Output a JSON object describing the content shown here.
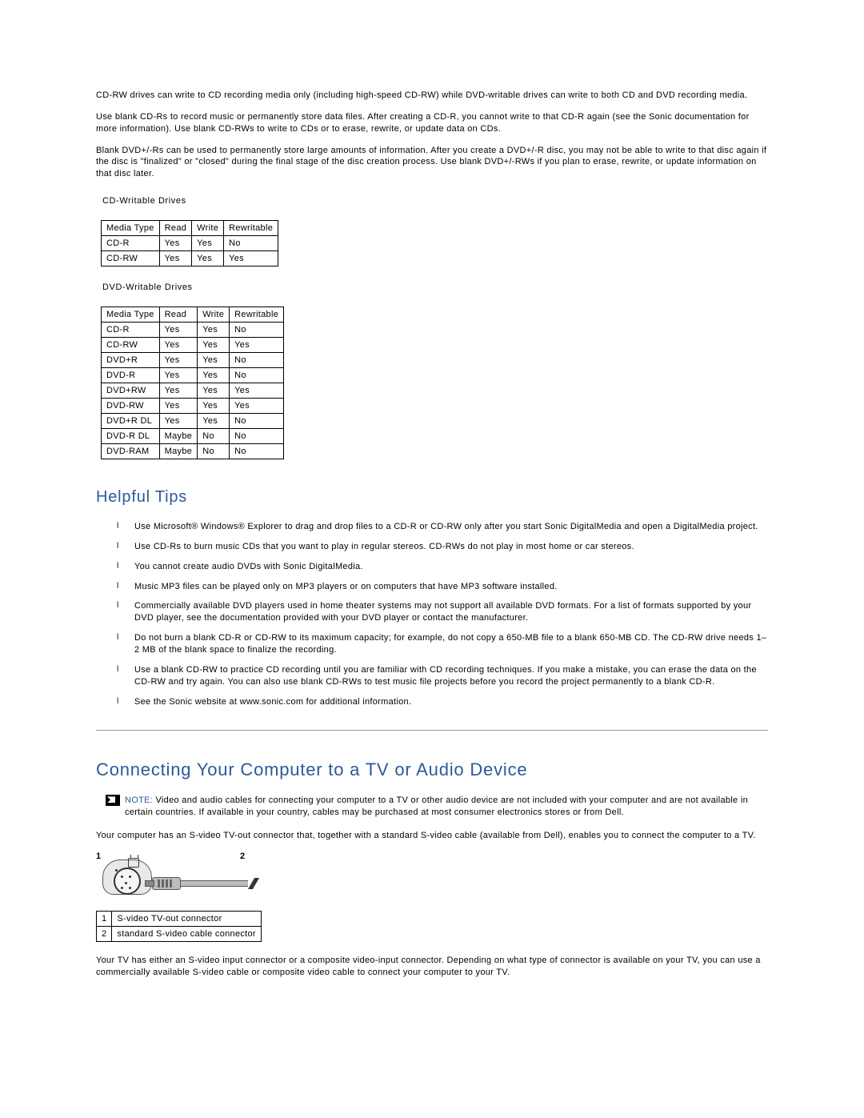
{
  "intro": {
    "p1": "CD-RW drives can write to CD recording media only (including high-speed CD-RW) while DVD-writable drives can write to both CD and DVD recording media.",
    "p2": "Use blank CD-Rs to record music or permanently store data files. After creating a CD-R, you cannot write to that CD-R again (see the Sonic documentation for more information). Use blank CD-RWs to write to CDs or to erase, rewrite, or update data on CDs.",
    "p3": "Blank DVD+/-Rs can be used to permanently store large amounts of information. After you create a DVD+/-R disc, you may not be able to write to that disc again if the disc is \"finalized\" or \"closed\" during the final stage of the disc creation process. Use blank DVD+/-RWs if you plan to erase, rewrite, or update information on that disc later."
  },
  "tables": {
    "headers": [
      "Media Type",
      "Read",
      "Write",
      "Rewritable"
    ],
    "cd": {
      "caption": "CD-Writable Drives",
      "rows": [
        [
          "CD-R",
          "Yes",
          "Yes",
          "No"
        ],
        [
          "CD-RW",
          "Yes",
          "Yes",
          "Yes"
        ]
      ]
    },
    "dvd": {
      "caption": "DVD-Writable Drives",
      "rows": [
        [
          "CD-R",
          "Yes",
          "Yes",
          "No"
        ],
        [
          "CD-RW",
          "Yes",
          "Yes",
          "Yes"
        ],
        [
          "DVD+R",
          "Yes",
          "Yes",
          "No"
        ],
        [
          "DVD-R",
          "Yes",
          "Yes",
          "No"
        ],
        [
          "DVD+RW",
          "Yes",
          "Yes",
          "Yes"
        ],
        [
          "DVD-RW",
          "Yes",
          "Yes",
          "Yes"
        ],
        [
          "DVD+R DL",
          "Yes",
          "Yes",
          "No"
        ],
        [
          "DVD-R DL",
          "Maybe",
          "No",
          "No"
        ],
        [
          "DVD-RAM",
          "Maybe",
          "No",
          "No"
        ]
      ]
    }
  },
  "tips": {
    "heading": "Helpful Tips",
    "items": [
      "Use Microsoft® Windows® Explorer to drag and drop files to a CD-R or CD-RW only after you start Sonic DigitalMedia and open a DigitalMedia project.",
      "Use CD-Rs to burn music CDs that you want to play in regular stereos. CD-RWs do not play in most home or car stereos.",
      "You cannot create audio DVDs with Sonic DigitalMedia.",
      "Music MP3 files can be played only on MP3 players or on computers that have MP3 software installed.",
      "Commercially available DVD players used in home theater systems may not support all available DVD formats. For a list of formats supported by your DVD player, see the documentation provided with your DVD player or contact the manufacturer.",
      " Do not burn a blank CD-R or CD-RW to its maximum capacity; for example, do not copy a 650-MB file to a blank 650-MB CD. The CD-RW drive needs 1–2 MB of the blank space to finalize the recording.",
      " Use a blank CD-RW to practice CD recording until you are familiar with CD recording techniques. If you make a mistake, you can erase the data on the CD-RW and try again. You can also use blank CD-RWs to test music file projects before you record the project permanently to a blank CD-R.",
      "See the Sonic website at www.sonic.com for additional information."
    ]
  },
  "connect": {
    "heading": "Connecting Your Computer to a TV or Audio Device",
    "note_label": "NOTE:",
    "note_text": " Video and audio cables for connecting your computer to a TV or other audio device are not included with your computer and are not available in certain countries. If available in your country, cables may be purchased at most consumer electronics stores or from Dell.",
    "p1": "Your computer has an S-video TV-out connector that, together with a standard S-video cable (available from Dell), enables you to connect the computer to a TV.",
    "callout1": "1",
    "callout2": "2",
    "legend": [
      [
        "1",
        "S-video TV-out connector"
      ],
      [
        "2",
        "standard S-video cable connector"
      ]
    ],
    "p2": "Your TV has either an S-video input connector or a composite video-input connector. Depending on what type of connector is available on your TV, you can use a commercially available S-video cable or composite video cable to connect your computer to your TV."
  },
  "colors": {
    "heading": "#2a5a9a",
    "text": "#000000",
    "border": "#000000",
    "rule": "#999999",
    "diagram_fill": "#bdbdbd",
    "background": "#ffffff"
  }
}
